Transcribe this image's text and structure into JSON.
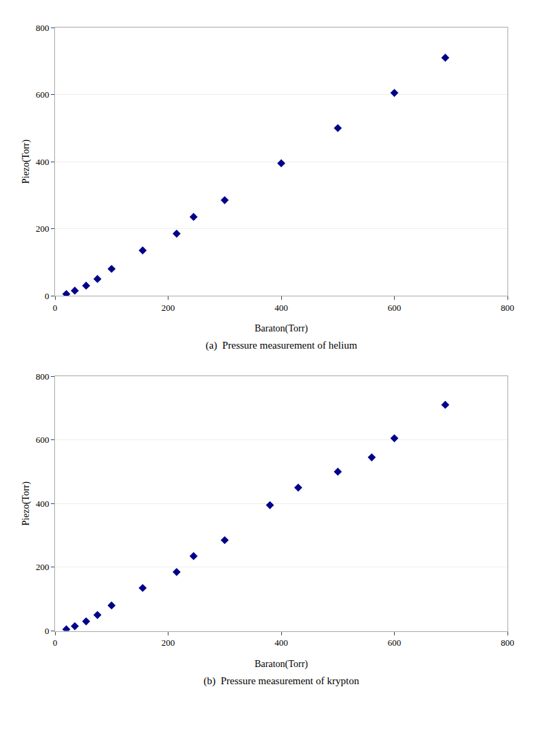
{
  "chart_data": [
    {
      "type": "scatter",
      "x": [
        20,
        35,
        55,
        75,
        100,
        155,
        215,
        245,
        300,
        400,
        500,
        600,
        690
      ],
      "values": [
        5,
        15,
        30,
        50,
        80,
        135,
        185,
        235,
        285,
        395,
        500,
        605,
        710
      ],
      "xlabel": "Baraton(Torr)",
      "ylabel": "Piezo(Torr)",
      "annotations": [
        "(a)  Pressure measurement of helium"
      ],
      "marker": "diamond",
      "color": "#00008B",
      "xlim": [
        0,
        800
      ],
      "ylim": [
        0,
        800
      ],
      "xticks": [
        0,
        200,
        400,
        600,
        800
      ],
      "yticks": [
        0,
        200,
        400,
        600,
        800
      ],
      "grid": "y"
    },
    {
      "type": "scatter",
      "x": [
        20,
        35,
        55,
        75,
        100,
        155,
        215,
        245,
        300,
        380,
        430,
        500,
        560,
        600,
        690
      ],
      "values": [
        5,
        15,
        30,
        50,
        80,
        135,
        185,
        235,
        285,
        395,
        450,
        500,
        545,
        605,
        710
      ],
      "xlabel": "Baraton(Torr)",
      "ylabel": "Piezo(Torr)",
      "annotations": [
        "(b)  Pressure measurement of krypton"
      ],
      "marker": "diamond",
      "color": "#00008B",
      "xlim": [
        0,
        800
      ],
      "ylim": [
        0,
        800
      ],
      "xticks": [
        0,
        200,
        400,
        600,
        800
      ],
      "yticks": [
        0,
        200,
        400,
        600,
        800
      ],
      "grid": "y"
    }
  ]
}
